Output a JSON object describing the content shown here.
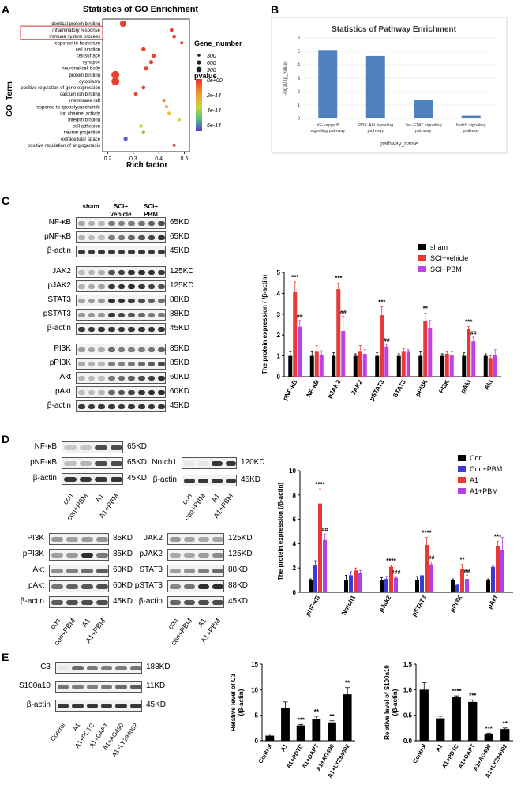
{
  "panel_labels": {
    "A": "A",
    "B": "B",
    "C": "C",
    "D": "D",
    "E": "E"
  },
  "panelA": {
    "title": "Statistics of GO Enrichment",
    "ylabel": "GO_Term",
    "xlabel": "Rich factor",
    "legend_size_title": "Gene_number",
    "legend_sizes": [
      "300",
      "600",
      "900"
    ],
    "legend_color_title": "pvalue",
    "legend_colors": [
      "0e+00",
      "2e-14",
      "4e-14",
      "6e-14"
    ]
  },
  "panelB": {
    "title": "Statistics of Pathway Enrichment",
    "ylabel": "-log10 (p_value)",
    "xlabel": "pathway_name"
  },
  "panelC": {
    "lanes": [
      "sham",
      "SCI+\nvehicle",
      "SCI+\nPBM"
    ],
    "blots": [
      {
        "name": "NF-κB",
        "kd": "65KD"
      },
      {
        "name": "pNF-κB",
        "kd": "65KD"
      },
      {
        "name": "β-actin",
        "kd": "45KD"
      },
      {
        "name": "JAK2",
        "kd": "125KD"
      },
      {
        "name": "pJAK2",
        "kd": "125KD"
      },
      {
        "name": "STAT3",
        "kd": "88KD"
      },
      {
        "name": "pSTAT3",
        "kd": "88KD"
      },
      {
        "name": "β-actin",
        "kd": "45KD"
      },
      {
        "name": "PI3K",
        "kd": "85KD"
      },
      {
        "name": "pPI3K",
        "kd": "85KD"
      },
      {
        "name": "Akt",
        "kd": "60KD"
      },
      {
        "name": "pAkt",
        "kd": "60KD"
      },
      {
        "name": "β-actin",
        "kd": "45KD"
      }
    ],
    "ylabel": "The protein expression ( /β-actin)"
  },
  "panelD": {
    "blot1": [
      {
        "name": "NF-κB",
        "kd": "65KD"
      },
      {
        "name": "pNF-κB",
        "kd": "65KD"
      },
      {
        "name": "β-actin",
        "kd": "45KD"
      }
    ],
    "blot2": [
      {
        "name": "Notch1",
        "kd": "120KD"
      },
      {
        "name": "β-actin",
        "kd": "45KD"
      }
    ],
    "blot3": [
      {
        "name": "PI3K",
        "kd": "85KD"
      },
      {
        "name": "pPI3K",
        "kd": "85KD"
      },
      {
        "name": "Akt",
        "kd": "60KD"
      },
      {
        "name": "pAkt",
        "kd": "60KD"
      },
      {
        "name": "β-actin",
        "kd": "45KD"
      }
    ],
    "blot4": [
      {
        "name": "JAK2",
        "kd": "125KD"
      },
      {
        "name": "pJAK2",
        "kd": "125KD"
      },
      {
        "name": "STAT3",
        "kd": "88KD"
      },
      {
        "name": "pSTAT3",
        "kd": "88KD"
      },
      {
        "name": "β-actin",
        "kd": "45KD"
      }
    ],
    "lanes": [
      "con",
      "con+PBM",
      "A1",
      "A1+PBM"
    ],
    "ylabel": "The protein expression (/β-actin)"
  },
  "panelE": {
    "blots": [
      {
        "name": "C3",
        "kd": "188KD"
      },
      {
        "name": "S100a10",
        "kd": "11KD"
      },
      {
        "name": "β-actin",
        "kd": "45KD"
      }
    ],
    "lanes": [
      "Control",
      "A1",
      "A1+PDTC",
      "A1+DAPT",
      "A1+AG490",
      "A1+LY294002"
    ]
  },
  "chart_data": [
    {
      "id": "A",
      "type": "scatter",
      "title": "Statistics of GO Enrichment",
      "xlabel": "Rich factor",
      "ylabel": "GO_Term",
      "xlim": [
        0.18,
        0.52
      ],
      "xticks": [
        "0.2",
        "0.3",
        "0.4",
        "0.5"
      ],
      "categories": [
        "identical protein binding",
        "inflammatory response",
        "immune system process",
        "response to bacterium",
        "cell junction",
        "cell surface",
        "synapse",
        "neuronal cell body",
        "protein binding",
        "cytoplasm",
        "positive regulation of gene expression",
        "calcium ion binding",
        "membrane raft",
        "response to lipopolysaccharide",
        "ion channel activity",
        "integrin binding",
        "cell adhesion",
        "neuron projection",
        "extracellular space",
        "positive regulation of angiogenesis"
      ],
      "points": [
        {
          "term": "identical protein binding",
          "x": 0.26,
          "size": 600,
          "color": "#e8412c"
        },
        {
          "term": "inflammatory response",
          "x": 0.45,
          "size": 200,
          "color": "#e8412c"
        },
        {
          "term": "immune system process",
          "x": 0.46,
          "size": 200,
          "color": "#e8412c"
        },
        {
          "term": "response to bacterium",
          "x": 0.49,
          "size": 150,
          "color": "#e8412c"
        },
        {
          "term": "cell junction",
          "x": 0.34,
          "size": 250,
          "color": "#e8412c"
        },
        {
          "term": "cell surface",
          "x": 0.38,
          "size": 250,
          "color": "#e8412c"
        },
        {
          "term": "synapse",
          "x": 0.37,
          "size": 250,
          "color": "#e8412c"
        },
        {
          "term": "neuronal cell body",
          "x": 0.35,
          "size": 250,
          "color": "#e8412c"
        },
        {
          "term": "protein binding",
          "x": 0.23,
          "size": 900,
          "color": "#e8412c"
        },
        {
          "term": "cytoplasm",
          "x": 0.23,
          "size": 900,
          "color": "#e8412c"
        },
        {
          "term": "positive regulation of gene expression",
          "x": 0.34,
          "size": 200,
          "color": "#e8412c"
        },
        {
          "term": "calcium ion binding",
          "x": 0.31,
          "size": 200,
          "color": "#e8412c"
        },
        {
          "term": "membrane raft",
          "x": 0.42,
          "size": 150,
          "color": "#f07a25"
        },
        {
          "term": "response to lipopolysaccharide",
          "x": 0.43,
          "size": 150,
          "color": "#f0a030"
        },
        {
          "term": "ion channel activity",
          "x": 0.44,
          "size": 150,
          "color": "#f0c040"
        },
        {
          "term": "integrin binding",
          "x": 0.48,
          "size": 150,
          "color": "#d8d040"
        },
        {
          "term": "cell adhesion",
          "x": 0.33,
          "size": 200,
          "color": "#c8d848"
        },
        {
          "term": "neuron projection",
          "x": 0.34,
          "size": 200,
          "color": "#88c858"
        },
        {
          "term": "extracellular space",
          "x": 0.27,
          "size": 250,
          "color": "#5a5ad0"
        },
        {
          "term": "positive regulation of angiogenesis",
          "x": 0.46,
          "size": 150,
          "color": "#d05050"
        }
      ]
    },
    {
      "id": "B",
      "type": "bar",
      "title": "Statistics of Pathway Enrichment",
      "xlabel": "pathway_name",
      "ylabel": "-log10 (p_value)",
      "ylim": [
        0,
        6
      ],
      "yticks": [
        "0",
        "1",
        "2",
        "3",
        "4",
        "5",
        "6"
      ],
      "categories": [
        "NF-kappa B\nsignaling pathway",
        "PI3K-Akt signaling\npathway",
        "Jak-STAT signaling\npathway",
        "Notch signaling\npathway"
      ],
      "values": [
        5.1,
        4.65,
        1.35,
        0.2
      ],
      "color": "#4e81bd"
    },
    {
      "id": "C",
      "type": "bar",
      "ylabel": "The protein expression ( /β-actin)",
      "ylim": [
        0,
        5
      ],
      "yticks": [
        "0",
        "1",
        "2",
        "3",
        "4",
        "5"
      ],
      "categories": [
        "pNF-κB",
        "NF-κB",
        "pJAK2",
        "JAK2",
        "pSTAT3",
        "STAT3",
        "pPI3K",
        "PI3K",
        "pAkt",
        "Akt"
      ],
      "series": [
        {
          "name": "sham",
          "color": "#000000",
          "values": [
            1,
            1,
            1,
            1,
            1,
            1,
            1,
            1,
            1,
            1
          ],
          "err": [
            0.2,
            0.2,
            0.15,
            0.1,
            0.15,
            0.1,
            0.2,
            0.1,
            0.15,
            0.1
          ]
        },
        {
          "name": "SCI+vehicle",
          "color": "#e83838",
          "values": [
            4.05,
            1.2,
            4.2,
            1.2,
            2.95,
            1.2,
            2.65,
            1.1,
            2.3,
            0.9
          ],
          "err": [
            0.5,
            0.3,
            0.3,
            0.3,
            0.4,
            0.15,
            0.4,
            0.1,
            0.1,
            0.1
          ]
        },
        {
          "name": "SCI+PBM",
          "color": "#c040e8",
          "values": [
            2.4,
            1.05,
            2.2,
            1.1,
            1.45,
            1.2,
            2.35,
            1.05,
            1.7,
            1.05
          ],
          "err": [
            0.3,
            0.2,
            0.7,
            0.2,
            0.1,
            0.1,
            0.35,
            0.15,
            0.2,
            0.25
          ]
        }
      ],
      "annotations": [
        {
          "cat": "pNF-κB",
          "text": "***"
        },
        {
          "cat": "pNF-κB",
          "text": "##"
        },
        {
          "cat": "pJAK2",
          "text": "***"
        },
        {
          "cat": "pJAK2",
          "text": "##"
        },
        {
          "cat": "pSTAT3",
          "text": "***"
        },
        {
          "cat": "pSTAT3",
          "text": "##"
        },
        {
          "cat": "pPI3K",
          "text": "**"
        },
        {
          "cat": "pAkt",
          "text": "***"
        },
        {
          "cat": "pAkt",
          "text": "##"
        }
      ]
    },
    {
      "id": "D",
      "type": "bar",
      "ylabel": "The protein expression (/β-actin)",
      "ylim": [
        0,
        10
      ],
      "yticks": [
        "0",
        "2",
        "4",
        "6",
        "8",
        "10"
      ],
      "categories": [
        "pNF-κB",
        "Notch1",
        "pJak2",
        "pSTAT3",
        "pPI3K",
        "pAkt"
      ],
      "series": [
        {
          "name": "Con",
          "color": "#000000",
          "values": [
            1,
            1,
            1,
            1,
            1,
            1
          ],
          "err": [
            0.1,
            0.4,
            0.2,
            0.3,
            0.1,
            0.1
          ]
        },
        {
          "name": "Con+PBM",
          "color": "#3a3ad8",
          "values": [
            2.2,
            1.4,
            1.1,
            1.4,
            0.6,
            2.1
          ],
          "err": [
            0.4,
            0.3,
            0.2,
            0.2,
            0.05,
            0.1
          ]
        },
        {
          "name": "A1",
          "color": "#e83838",
          "values": [
            7.3,
            1.8,
            2.1,
            3.9,
            1.9,
            3.8
          ],
          "err": [
            1.2,
            0.2,
            0.1,
            0.6,
            0.4,
            0.4
          ]
        },
        {
          "name": "A1+PBM",
          "color": "#b040e8",
          "values": [
            4.3,
            1.6,
            1.2,
            2.3,
            1.1,
            3.5
          ],
          "err": [
            0.5,
            0.2,
            0.1,
            0.2,
            0.3,
            1.0
          ]
        }
      ],
      "annotations": [
        {
          "cat": "pNF-κB",
          "text": "****"
        },
        {
          "cat": "pNF-κB",
          "text": "##"
        },
        {
          "cat": "pJak2",
          "text": "****"
        },
        {
          "cat": "pJak2",
          "text": "###"
        },
        {
          "cat": "pSTAT3",
          "text": "****"
        },
        {
          "cat": "pSTAT3",
          "text": "##"
        },
        {
          "cat": "pPI3K",
          "text": "**"
        },
        {
          "cat": "pPI3K",
          "text": "##"
        },
        {
          "cat": "pAkt",
          "text": "***"
        }
      ]
    },
    {
      "id": "E1",
      "type": "bar",
      "ylabel": "Relative level of C3\n(/β-actin)",
      "ylim": [
        0,
        15
      ],
      "yticks": [
        "0",
        "5",
        "10",
        "15"
      ],
      "categories": [
        "Control",
        "A1",
        "A1+PDTC",
        "A1+DAPT",
        "A1+AG490",
        "A1+LY294002"
      ],
      "values": [
        1,
        6.5,
        3.0,
        4.2,
        3.6,
        9.1
      ],
      "err": [
        0.3,
        1.1,
        0.2,
        0.6,
        0.3,
        1.3
      ],
      "annotations": [
        "",
        "",
        "***",
        "**",
        "**",
        "**"
      ]
    },
    {
      "id": "E2",
      "type": "bar",
      "ylabel": "Relative level of S100a10\n(/β-actin)",
      "ylim": [
        0,
        1.5
      ],
      "yticks": [
        "0.0",
        "0.5",
        "1.0",
        "1.5"
      ],
      "categories": [
        "Control",
        "A1",
        "A1+PDTC",
        "A1+DAPT",
        "A1+AG490",
        "A1+LY294002"
      ],
      "values": [
        1.0,
        0.44,
        0.85,
        0.76,
        0.13,
        0.23
      ],
      "err": [
        0.14,
        0.04,
        0.03,
        0.04,
        0.02,
        0.02
      ],
      "annotations": [
        "",
        "",
        "****",
        "***",
        "***",
        "**"
      ]
    }
  ]
}
